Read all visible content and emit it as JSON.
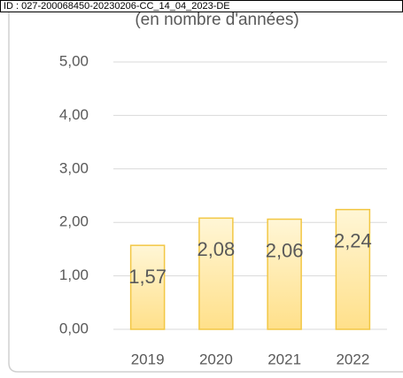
{
  "stamp": "ID : 027-200068450-20230206-CC_14_04_2023-DE",
  "chart_data": {
    "type": "bar",
    "subtitle": "(en nombre d'années)",
    "categories": [
      "2019",
      "2020",
      "2021",
      "2022"
    ],
    "values": [
      1.57,
      2.08,
      2.06,
      2.24
    ],
    "value_labels": [
      "1,57",
      "2,08",
      "2,06",
      "2,24"
    ],
    "color": "#f2c744",
    "ylim": [
      0,
      5
    ],
    "yticks": [
      {
        "value": 0,
        "label": "0,00"
      },
      {
        "value": 1,
        "label": "1,00"
      },
      {
        "value": 2,
        "label": "2,00"
      },
      {
        "value": 3,
        "label": "3,00"
      },
      {
        "value": 4,
        "label": "4,00"
      },
      {
        "value": 5,
        "label": "5,00"
      }
    ],
    "grid": true
  }
}
